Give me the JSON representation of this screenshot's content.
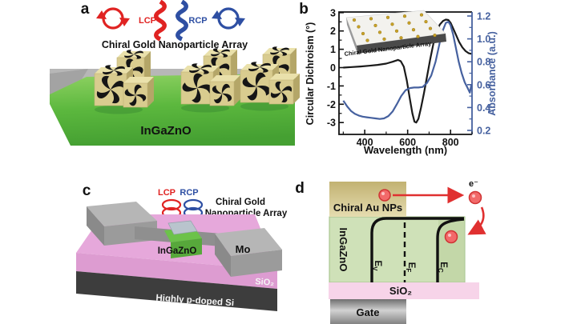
{
  "panels": {
    "a": {
      "label": "a",
      "lcp": "LCP",
      "rcp": "RCP",
      "title": "Chiral Gold Nanoparticle Array",
      "substrate": "InGaZnO"
    },
    "b": {
      "label": "b",
      "inset_label": "Chiral Gold Nanoparticle Array"
    },
    "c": {
      "label": "c",
      "lcp": "LCP",
      "rcp": "RCP",
      "annotation_line1": "Chiral Gold",
      "annotation_line2": "Nanoparticle Array",
      "channel": "InGaZnO",
      "electrode": "Mo",
      "oxide_label": "SiO₂",
      "substrate": "Highly p-doped Si"
    },
    "d": {
      "label": "d",
      "np_layer": "Chiral Au NPs",
      "channel": "InGaZnO",
      "electron_label": "e⁻",
      "band_labels": {
        "ev_main": "E",
        "ev_sub": "V",
        "ef_main": "E",
        "ef_sub": "F",
        "ec_main": "E",
        "ec_sub": "C"
      },
      "oxide_label": "SiO₂",
      "gate": "Gate"
    }
  },
  "colors": {
    "lcp_red": "#e02322",
    "rcp_blue": "#2e4fa3",
    "cd_black": "#1a1a1a",
    "absorbance_blue": "#46619f",
    "ingazno_green": "#5ab43c",
    "sio2_pink": "#e6a8db",
    "gold_khaki": "#d9cc8f",
    "chiral_aunp_tan": "#d3c68a",
    "gate_gray": "#8f8f8f"
  },
  "chart_data": {
    "type": "line",
    "title": "",
    "xlabel": "Wavelength (nm)",
    "ylabel_left": "Circular Dichroism (°)",
    "ylabel_right": "Absorbance (a.u.)",
    "xlim": [
      280,
      900
    ],
    "ylim_left": [
      -3,
      3
    ],
    "ylim_right": [
      0.2,
      1.2
    ],
    "xticks_labeled": [
      400,
      600,
      800
    ],
    "xticks_minor": [
      300,
      500,
      700,
      900
    ],
    "yticks_left": [
      3,
      2,
      1,
      0,
      -1,
      -2,
      -3
    ],
    "yticks_left_minor": [
      2.5,
      1.5,
      0.5,
      -0.5,
      -1.5,
      -2.5
    ],
    "yticks_right": [
      1.2,
      1.0,
      0.8,
      0.6,
      0.4,
      0.2
    ],
    "yticks_right_minor": [
      1.1,
      0.9,
      0.7,
      0.5,
      0.3
    ],
    "grid": false,
    "legend": "none",
    "series": [
      {
        "name": "Circular Dichroism",
        "axis": "left",
        "color": "#1a1a1a",
        "x": [
          300,
          340,
          380,
          420,
          460,
          500,
          530,
          555,
          568,
          582,
          596,
          610,
          622,
          632,
          640,
          650,
          662,
          676,
          690,
          705,
          720,
          735,
          750,
          765,
          778,
          790,
          800,
          812,
          825,
          840,
          855,
          870,
          885,
          897
        ],
        "y": [
          0.0,
          0.03,
          0.06,
          0.1,
          0.15,
          0.22,
          0.32,
          0.42,
          0.35,
          0.05,
          -0.7,
          -1.7,
          -2.5,
          -2.95,
          -3.0,
          -2.8,
          -2.2,
          -1.4,
          -0.5,
          0.45,
          1.3,
          1.95,
          2.35,
          2.55,
          2.62,
          2.6,
          2.45,
          2.15,
          1.8,
          1.4,
          1.1,
          0.9,
          0.78,
          0.75
        ]
      },
      {
        "name": "Absorbance",
        "axis": "right",
        "color": "#46619f",
        "x": [
          300,
          318,
          336,
          354,
          372,
          390,
          410,
          430,
          450,
          470,
          490,
          510,
          530,
          550,
          570,
          590,
          610,
          630,
          650,
          670,
          690,
          710,
          730,
          750,
          765,
          778,
          790,
          800,
          812,
          825,
          838,
          852,
          866,
          880,
          890,
          897
        ],
        "y": [
          0.46,
          0.41,
          0.37,
          0.345,
          0.33,
          0.32,
          0.315,
          0.31,
          0.305,
          0.3,
          0.305,
          0.325,
          0.365,
          0.43,
          0.5,
          0.55,
          0.57,
          0.575,
          0.575,
          0.58,
          0.615,
          0.68,
          0.8,
          0.97,
          1.08,
          1.14,
          1.15,
          1.12,
          1.04,
          0.92,
          0.8,
          0.7,
          0.62,
          0.57,
          0.53,
          0.6
        ]
      }
    ]
  }
}
